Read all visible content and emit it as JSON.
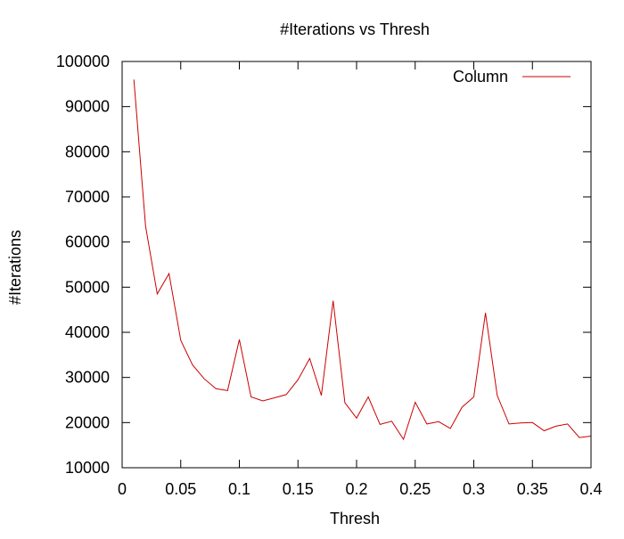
{
  "chart_data": {
    "type": "line",
    "title": "#Iterations vs Thresh",
    "xlabel": "Thresh",
    "ylabel": "#Iterations",
    "xlim": [
      0,
      0.4
    ],
    "ylim": [
      10000,
      100000
    ],
    "xticks": [
      0,
      0.05,
      0.1,
      0.15,
      0.2,
      0.25,
      0.3,
      0.35,
      0.4
    ],
    "xtick_labels": [
      "0",
      "0.05",
      "0.1",
      "0.15",
      "0.2",
      "0.25",
      "0.3",
      "0.35",
      "0.4"
    ],
    "yticks": [
      10000,
      20000,
      30000,
      40000,
      50000,
      60000,
      70000,
      80000,
      90000,
      100000
    ],
    "ytick_labels": [
      "10000",
      "20000",
      "30000",
      "40000",
      "50000",
      "60000",
      "70000",
      "80000",
      "90000",
      "100000"
    ],
    "grid": false,
    "legend": "top-right",
    "series": [
      {
        "name": "Column",
        "color": "#cc0000",
        "x": [
          0.01,
          0.02,
          0.03,
          0.04,
          0.05,
          0.06,
          0.07,
          0.08,
          0.09,
          0.1,
          0.11,
          0.12,
          0.13,
          0.14,
          0.15,
          0.16,
          0.17,
          0.18,
          0.19,
          0.2,
          0.21,
          0.22,
          0.23,
          0.24,
          0.25,
          0.26,
          0.27,
          0.28,
          0.29,
          0.3,
          0.31,
          0.32,
          0.33,
          0.34,
          0.35,
          0.36,
          0.37,
          0.38,
          0.39,
          0.4
        ],
        "y": [
          96000,
          63500,
          48500,
          53000,
          38200,
          32800,
          29700,
          27500,
          27100,
          38400,
          25700,
          24800,
          25500,
          26200,
          29500,
          34200,
          26000,
          47000,
          24400,
          21000,
          25700,
          19600,
          20300,
          16300,
          24500,
          19700,
          20200,
          18700,
          23400,
          25700,
          44300,
          26000,
          19700,
          19900,
          20000,
          18200,
          19200,
          19700,
          16700,
          17000
        ]
      }
    ]
  }
}
